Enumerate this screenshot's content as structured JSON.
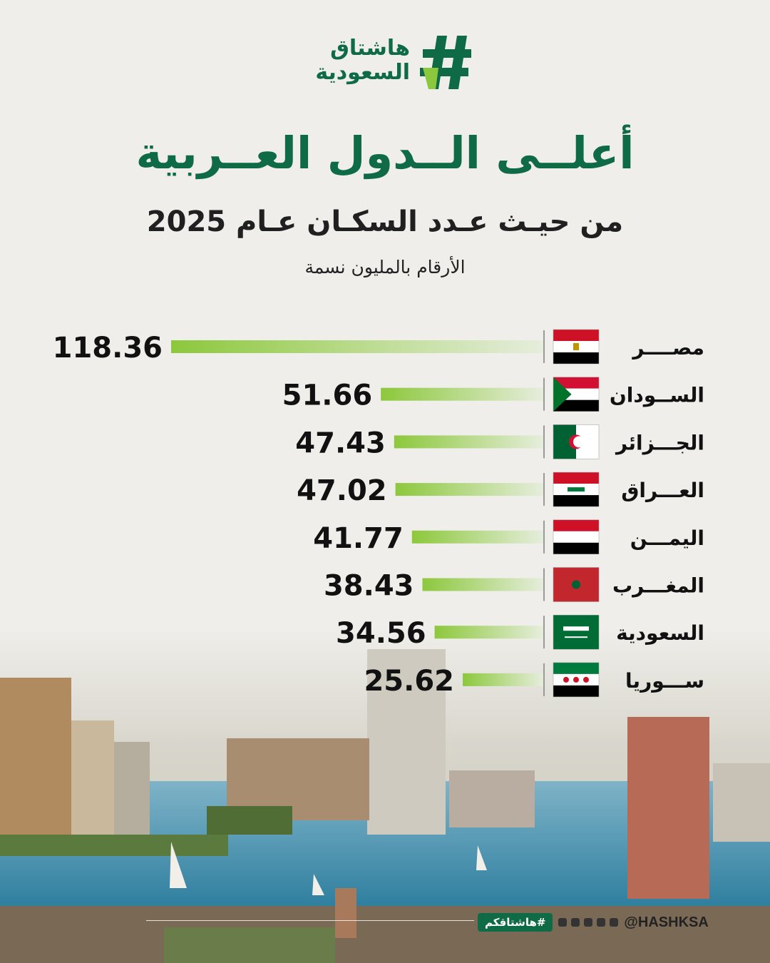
{
  "brand": {
    "name_line1": "هاشتاق",
    "name_line2": "السعودية",
    "green": "#0e6b45",
    "lime": "#8cc83c"
  },
  "title": "أعلــى الــدول العــربية",
  "subtitle": "من حيـث عـدد السكـان عـام 2025",
  "note": "الأرقام بالمليون نسمة",
  "chart_data": {
    "type": "bar",
    "orientation": "horizontal",
    "categories": [
      "مصــــر",
      "الســودان",
      "الجـــزائر",
      "العـــراق",
      "اليمـــن",
      "المغـــرب",
      "السعودية",
      "ســـوريا"
    ],
    "values": [
      118.36,
      51.66,
      47.43,
      47.02,
      41.77,
      38.43,
      34.56,
      25.62
    ],
    "value_labels": [
      "118.36",
      "51.66",
      "47.43",
      "47.02",
      "41.77",
      "38.43",
      "34.56",
      "25.62"
    ],
    "flags": [
      "egypt-flag-icon",
      "sudan-flag-icon",
      "algeria-flag-icon",
      "iraq-flag-icon",
      "yemen-flag-icon",
      "morocco-flag-icon",
      "saudi-flag-icon",
      "syria-flag-icon"
    ]
  },
  "footer": {
    "tag": "#هاشتاقكم",
    "handle": "@HASHKSA",
    "social_icons": [
      "facebook-icon",
      "x-icon",
      "snapchat-icon",
      "instagram-icon",
      "telegram-icon"
    ]
  }
}
